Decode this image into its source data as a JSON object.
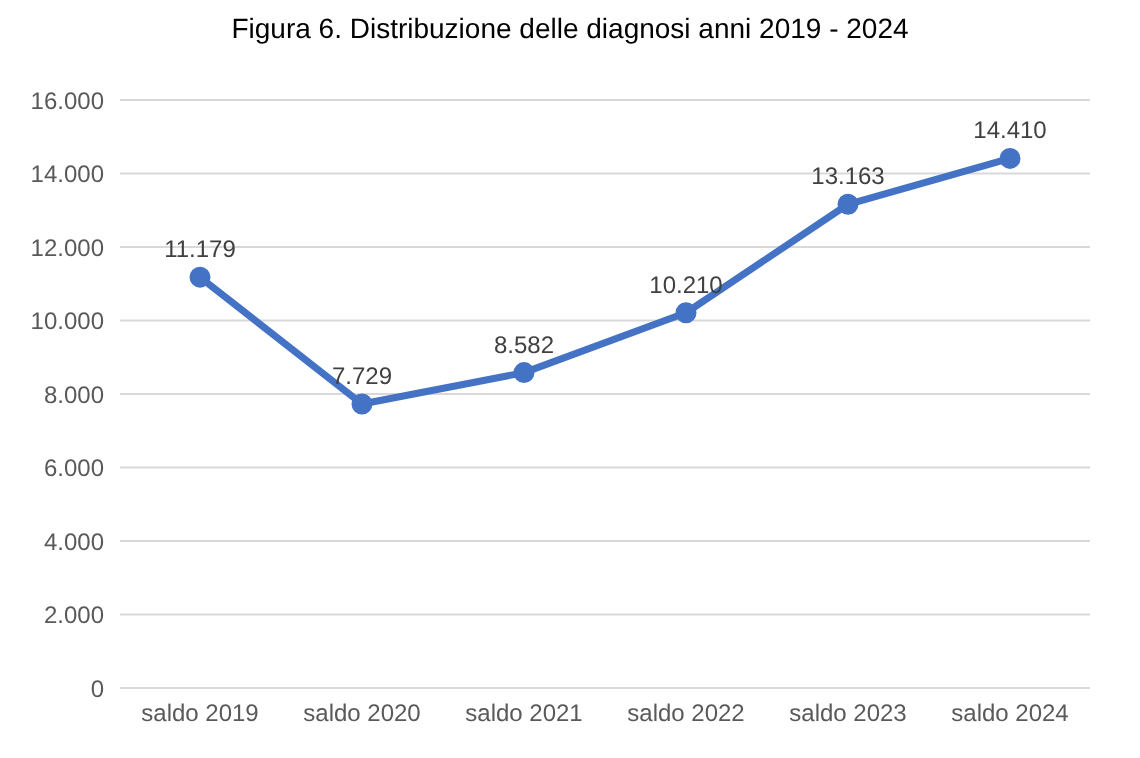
{
  "chart_data": {
    "type": "line",
    "title": "Figura 6. Distribuzione delle diagnosi anni 2019 - 2024",
    "categories": [
      "saldo 2019",
      "saldo 2020",
      "saldo 2021",
      "saldo 2022",
      "saldo 2023",
      "saldo 2024"
    ],
    "series": [
      {
        "color": "#4472c4",
        "values": [
          11179,
          7729,
          8582,
          10210,
          13163,
          14410
        ],
        "value_labels": [
          "11.179",
          "7.729",
          "8.582",
          "10.210",
          "13.163",
          "14.410"
        ]
      }
    ],
    "ylim": [
      0,
      16000
    ],
    "yticks": [
      0,
      {
        "value": 2000,
        "label": "2.000"
      },
      {
        "value": 4000,
        "label": "4.000"
      },
      {
        "value": 6000,
        "label": "6.000"
      },
      {
        "value": 8000,
        "label": "8.000"
      },
      {
        "value": 10000,
        "label": "10.000"
      },
      {
        "value": 12000,
        "label": "12.000"
      },
      {
        "value": 14000,
        "label": "14.000"
      },
      {
        "value": 16000,
        "label": "16.000"
      }
    ],
    "grid": "y",
    "legend": false,
    "marker": "circle",
    "line_style": "solid"
  }
}
